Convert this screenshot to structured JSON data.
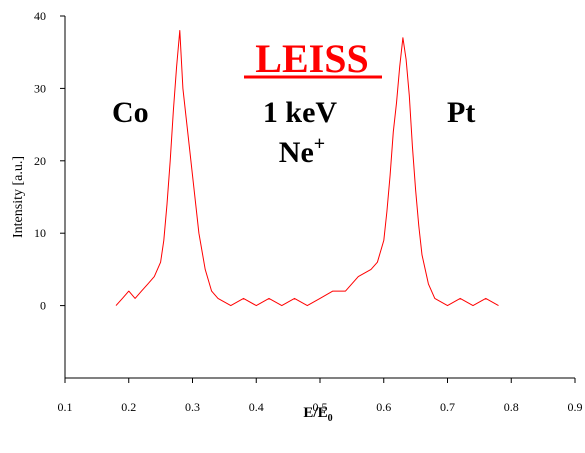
{
  "chart_data": {
    "type": "line",
    "title": "LEISS",
    "xlabel": "E/E",
    "xlabel_sub": "0",
    "ylabel": "Intensity [a.u.]",
    "xlim": [
      0.1,
      0.9
    ],
    "ylim": [
      -10,
      40
    ],
    "xticks": [
      "0.1",
      "0.2",
      "0.3",
      "0.4",
      "0.5",
      "0.6",
      "0.7",
      "0.8",
      "0.9"
    ],
    "yticks": [
      "0",
      "10",
      "20",
      "30",
      "40"
    ],
    "grid": false,
    "legend": "none",
    "annotations": {
      "co": "Co",
      "pt": "Pt",
      "energy": "1 keV",
      "ion": "Ne",
      "ion_sup": "+"
    },
    "colors": {
      "series": "#ff0000",
      "title": "#ff0000",
      "axis": "#000000"
    },
    "series": [
      {
        "x": [
          0.18,
          0.19,
          0.2,
          0.21,
          0.22,
          0.23,
          0.24,
          0.25,
          0.255,
          0.26,
          0.265,
          0.27,
          0.275,
          0.28,
          0.285,
          0.29,
          0.295,
          0.3,
          0.305,
          0.31,
          0.32,
          0.33,
          0.34,
          0.36,
          0.38,
          0.4,
          0.42,
          0.44,
          0.46,
          0.48,
          0.5,
          0.52,
          0.54,
          0.56,
          0.58,
          0.59,
          0.6,
          0.605,
          0.61,
          0.615,
          0.62,
          0.625,
          0.63,
          0.635,
          0.64,
          0.645,
          0.65,
          0.655,
          0.66,
          0.67,
          0.68,
          0.7,
          0.72,
          0.74,
          0.76,
          0.78
        ],
        "y": [
          0,
          1,
          2,
          1,
          2,
          3,
          4,
          6,
          9,
          14,
          20,
          27,
          33,
          38,
          30,
          26,
          22,
          18,
          14,
          10,
          5,
          2,
          1,
          0,
          1,
          0,
          1,
          0,
          1,
          0,
          1,
          2,
          2,
          4,
          5,
          6,
          9,
          13,
          18,
          24,
          28,
          33,
          37,
          34,
          29,
          22,
          16,
          11,
          7,
          3,
          1,
          0,
          1,
          0,
          1,
          0
        ]
      }
    ]
  }
}
